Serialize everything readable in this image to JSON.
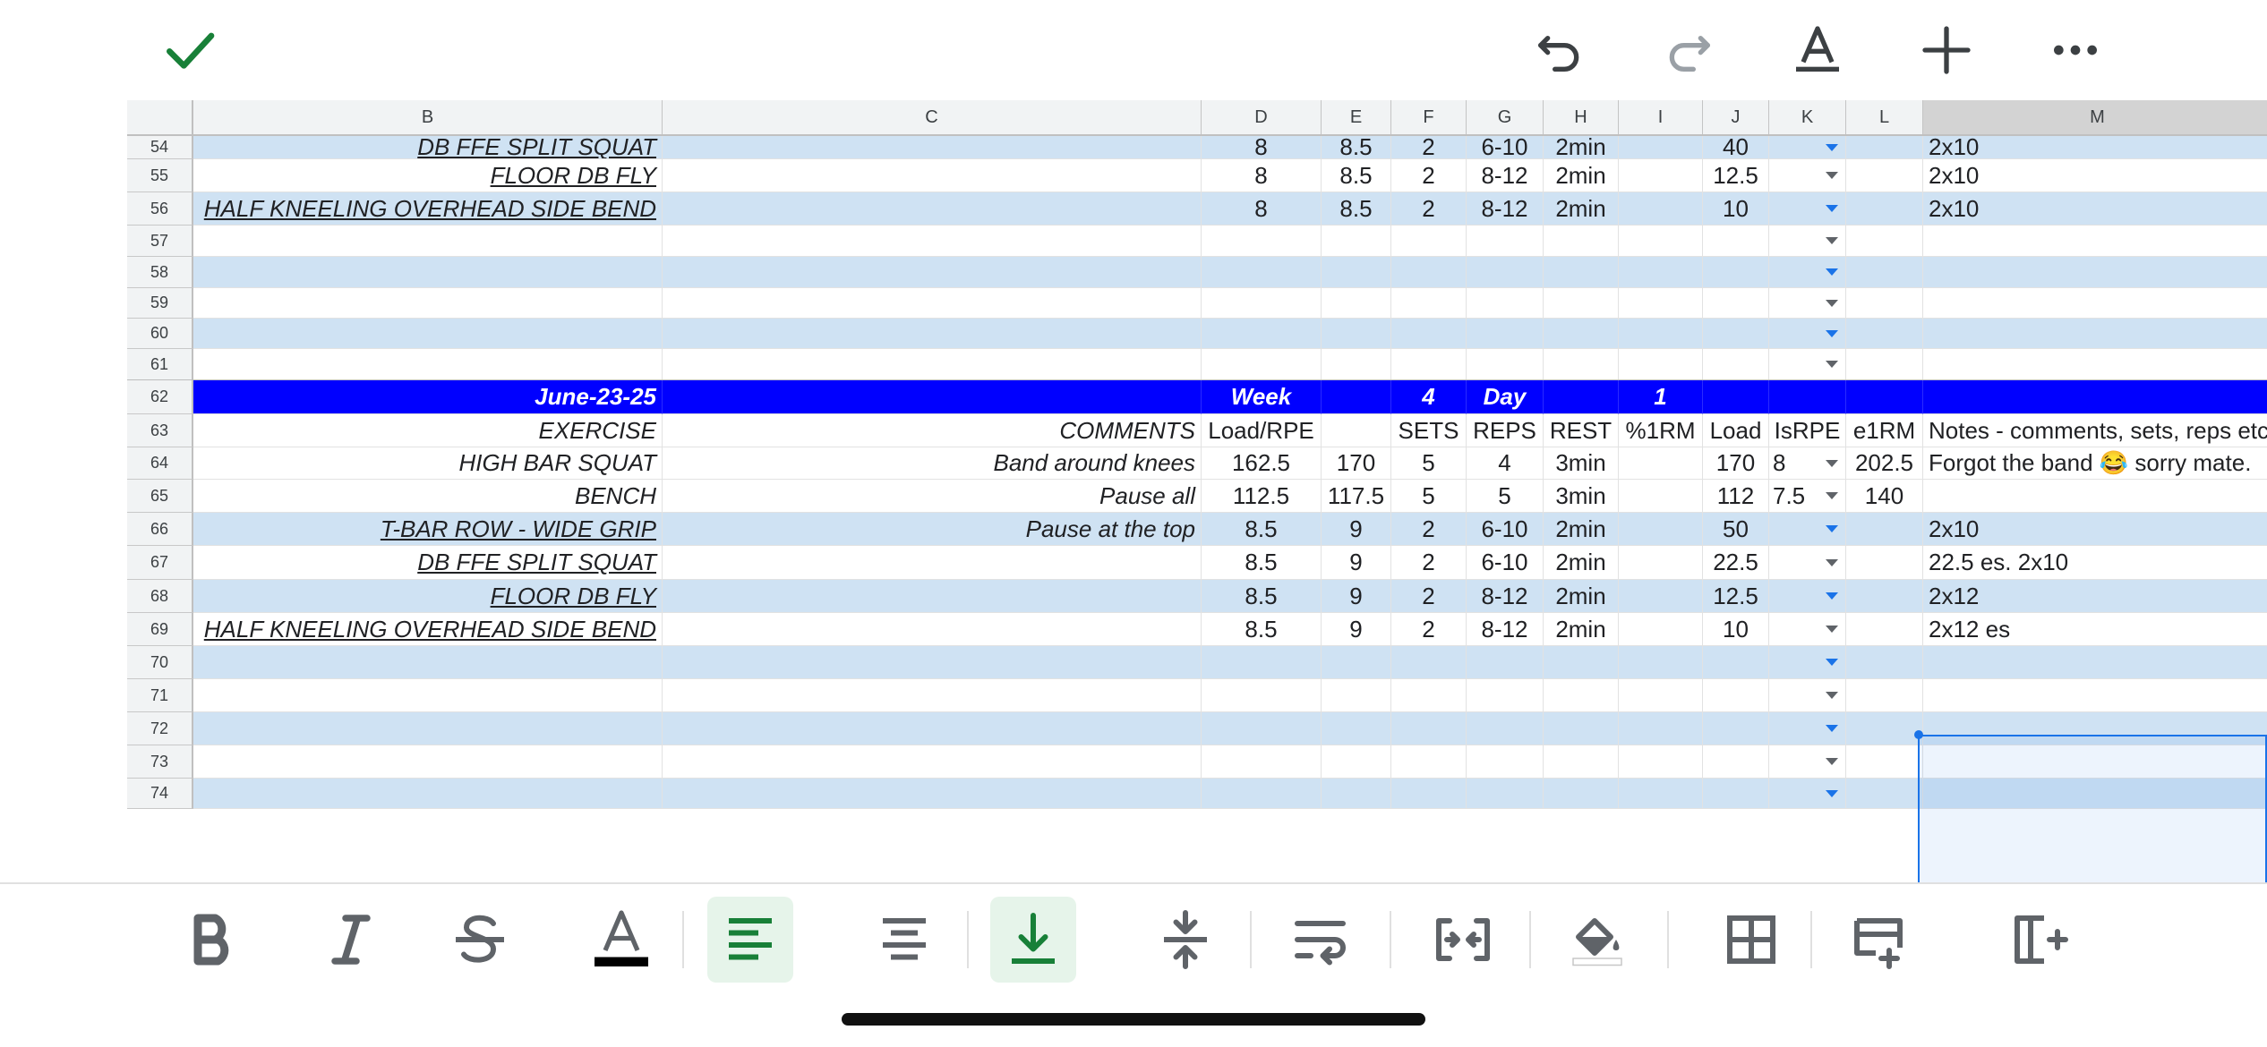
{
  "columns": [
    "B",
    "C",
    "D",
    "E",
    "F",
    "G",
    "H",
    "I",
    "J",
    "K",
    "L",
    "M"
  ],
  "rows": [
    {
      "num": "54",
      "cells": [
        "DB FFE SPLIT SQUAT",
        "",
        "8",
        "8.5",
        "2",
        "6-10",
        "2min",
        "",
        "40",
        "",
        "",
        "2x10"
      ]
    },
    {
      "num": "55",
      "cells": [
        "FLOOR DB FLY",
        "",
        "8",
        "8.5",
        "2",
        "8-12",
        "2min",
        "",
        "12.5",
        "",
        "",
        "2x10"
      ]
    },
    {
      "num": "56",
      "cells": [
        "HALF KNEELING OVERHEAD SIDE BEND",
        "",
        "8",
        "8.5",
        "2",
        "8-12",
        "2min",
        "",
        "10",
        "",
        "",
        "2x10"
      ]
    },
    {
      "num": "57",
      "cells": [
        "",
        "",
        "",
        "",
        "",
        "",
        "",
        "",
        "",
        "",
        "",
        ""
      ]
    },
    {
      "num": "58",
      "cells": [
        "",
        "",
        "",
        "",
        "",
        "",
        "",
        "",
        "",
        "",
        "",
        ""
      ]
    },
    {
      "num": "59",
      "cells": [
        "",
        "",
        "",
        "",
        "",
        "",
        "",
        "",
        "",
        "",
        "",
        ""
      ]
    },
    {
      "num": "60",
      "cells": [
        "",
        "",
        "",
        "",
        "",
        "",
        "",
        "",
        "",
        "",
        "",
        ""
      ]
    },
    {
      "num": "61",
      "cells": [
        "",
        "",
        "",
        "",
        "",
        "",
        "",
        "",
        "",
        "",
        "",
        ""
      ]
    },
    {
      "num": "62",
      "cells": [
        "June-23-25",
        "",
        "Week",
        "",
        "4",
        "Day",
        "",
        "1",
        "",
        "",
        "",
        ""
      ]
    },
    {
      "num": "63",
      "cells": [
        "EXERCISE",
        "COMMENTS",
        "Load/RPE",
        "",
        "SETS",
        "REPS",
        "REST",
        "%1RM",
        "Load",
        "IsRPE",
        "e1RM",
        "Notes - comments, sets, reps etc."
      ]
    },
    {
      "num": "64",
      "cells": [
        "HIGH BAR SQUAT",
        "Band around knees",
        "162.5",
        "170",
        "5",
        "4",
        "3min",
        "",
        "170",
        "8",
        "202.5",
        "Forgot the band 😂 sorry mate."
      ]
    },
    {
      "num": "65",
      "cells": [
        "BENCH",
        "Pause all",
        "112.5",
        "117.5",
        "5",
        "5",
        "3min",
        "",
        "112",
        "7.5",
        "140",
        ""
      ]
    },
    {
      "num": "66",
      "cells": [
        "T-BAR ROW - WIDE GRIP",
        "Pause at the top",
        "8.5",
        "9",
        "2",
        "6-10",
        "2min",
        "",
        "50",
        "",
        "",
        "2x10"
      ]
    },
    {
      "num": "67",
      "cells": [
        "DB FFE SPLIT SQUAT",
        "",
        "8.5",
        "9",
        "2",
        "6-10",
        "2min",
        "",
        "22.5",
        "",
        "",
        "22.5 es. 2x10"
      ]
    },
    {
      "num": "68",
      "cells": [
        "FLOOR DB FLY",
        "",
        "8.5",
        "9",
        "2",
        "8-12",
        "2min",
        "",
        "12.5",
        "",
        "",
        "2x12"
      ]
    },
    {
      "num": "69",
      "cells": [
        "HALF KNEELING OVERHEAD SIDE BEND",
        "",
        "8.5",
        "9",
        "2",
        "8-12",
        "2min",
        "",
        "10",
        "",
        "",
        "2x12 es"
      ]
    },
    {
      "num": "70",
      "cells": [
        "",
        "",
        "",
        "",
        "",
        "",
        "",
        "",
        "",
        "",
        "",
        ""
      ]
    },
    {
      "num": "71",
      "cells": [
        "",
        "",
        "",
        "",
        "",
        "",
        "",
        "",
        "",
        "",
        "",
        ""
      ]
    },
    {
      "num": "72",
      "cells": [
        "",
        "",
        "",
        "",
        "",
        "",
        "",
        "",
        "",
        "",
        "",
        ""
      ]
    },
    {
      "num": "73",
      "cells": [
        "",
        "",
        "",
        "",
        "",
        "",
        "",
        "",
        "",
        "",
        "",
        ""
      ]
    },
    {
      "num": "74",
      "cells": [
        "",
        "",
        "",
        "",
        "",
        "",
        "",
        "",
        "",
        "",
        "",
        ""
      ]
    }
  ],
  "colors": {
    "accent_green": "#188038",
    "band_blue": "#cfe2f3",
    "header_blue": "#0000ff",
    "selection_blue": "#1a73e8"
  },
  "top_toolbar": [
    "done-check-icon",
    "undo-icon",
    "redo-icon",
    "text-format-icon",
    "insert-plus-icon",
    "more-options-icon"
  ],
  "format_toolbar": [
    "bold-icon",
    "italic-icon",
    "strikethrough-icon",
    "text-color-icon",
    "align-left-icon",
    "align-center-icon",
    "vertical-align-bottom-icon",
    "vertical-align-middle-icon",
    "text-wrap-icon",
    "merge-cells-icon",
    "fill-color-icon",
    "borders-icon",
    "insert-row-icon",
    "insert-column-icon"
  ]
}
